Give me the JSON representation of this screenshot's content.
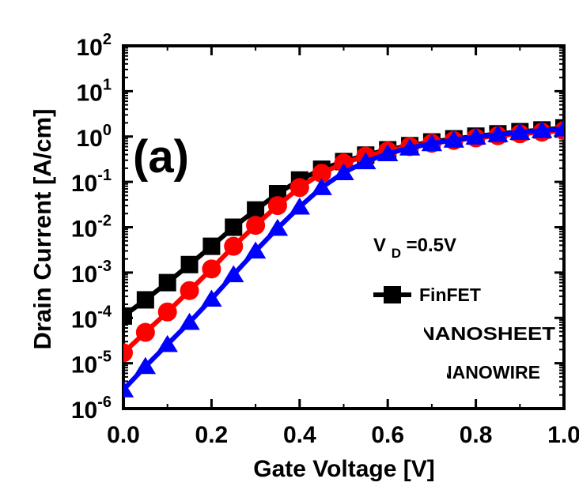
{
  "chart_data": {
    "type": "line",
    "panel_label": "(a)",
    "annotation": {
      "base": "V",
      "subscript": "D",
      "suffix": "=0.5V"
    },
    "xlabel": "Gate Voltage [V]",
    "ylabel": "Drain Current [A/cm]",
    "xlim": [
      0,
      1.0
    ],
    "ylim": [
      1e-06,
      100
    ],
    "yscale": "log",
    "grid": false,
    "legend_position": "right-center",
    "x_ticks": [
      "0.0",
      "0.2",
      "0.4",
      "0.6",
      "0.8",
      "1.0"
    ],
    "y_ticks": [
      {
        "base": "10",
        "exp": "2"
      },
      {
        "base": "10",
        "exp": "1"
      },
      {
        "base": "10",
        "exp": "0"
      },
      {
        "base": "10",
        "exp": "-1"
      },
      {
        "base": "10",
        "exp": "-2"
      },
      {
        "base": "10",
        "exp": "-3"
      },
      {
        "base": "10",
        "exp": "-4"
      },
      {
        "base": "10",
        "exp": "-5"
      },
      {
        "base": "10",
        "exp": "-6"
      }
    ],
    "x": [
      0.0,
      0.05,
      0.1,
      0.15,
      0.2,
      0.25,
      0.3,
      0.35,
      0.4,
      0.45,
      0.5,
      0.55,
      0.6,
      0.65,
      0.7,
      0.75,
      0.8,
      0.85,
      0.9,
      0.95,
      1.0
    ],
    "series": [
      {
        "name": "FinFET",
        "color": "#000000",
        "marker": "square",
        "values": [
          0.00011,
          0.00025,
          0.0006,
          0.0015,
          0.0038,
          0.01,
          0.024,
          0.055,
          0.11,
          0.19,
          0.28,
          0.39,
          0.51,
          0.63,
          0.76,
          0.89,
          1.02,
          1.15,
          1.28,
          1.4,
          1.55
        ]
      },
      {
        "name": "NANOSHEET",
        "color": "#ff0000",
        "marker": "circle",
        "values": [
          1.7e-05,
          4.8e-05,
          0.000135,
          0.0004,
          0.0012,
          0.0038,
          0.011,
          0.03,
          0.075,
          0.155,
          0.26,
          0.37,
          0.48,
          0.6,
          0.71,
          0.82,
          0.93,
          1.04,
          1.15,
          1.25,
          1.35
        ]
      },
      {
        "name": "NANOWIRE",
        "color": "#0000ff",
        "marker": "triangle",
        "values": [
          2.6e-06,
          8.5e-06,
          2.6e-05,
          8e-05,
          0.00026,
          0.0009,
          0.003,
          0.0095,
          0.028,
          0.075,
          0.16,
          0.28,
          0.42,
          0.56,
          0.7,
          0.84,
          0.98,
          1.11,
          1.24,
          1.36,
          1.48
        ]
      }
    ]
  }
}
